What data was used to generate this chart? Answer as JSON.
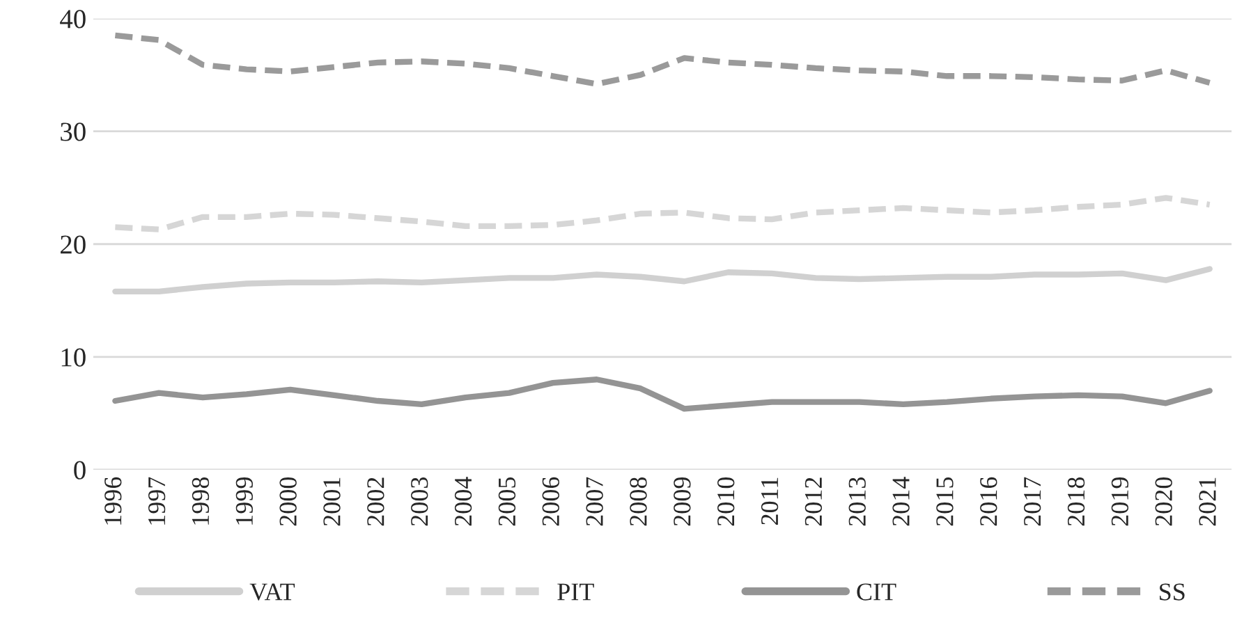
{
  "chart_data": {
    "type": "line",
    "categories": [
      "1996",
      "1997",
      "1998",
      "1999",
      "2000",
      "2001",
      "2002",
      "2003",
      "2004",
      "2005",
      "2006",
      "2007",
      "2008",
      "2009",
      "2010",
      "2011",
      "2012",
      "2013",
      "2014",
      "2015",
      "2016",
      "2017",
      "2018",
      "2019",
      "2020",
      "2021"
    ],
    "series": [
      {
        "name": "VAT",
        "color": "#d0d0d0",
        "line_style": "solid",
        "values": [
          15.8,
          15.8,
          16.2,
          16.5,
          16.6,
          16.6,
          16.7,
          16.6,
          16.8,
          17.0,
          17.0,
          17.3,
          17.1,
          16.7,
          17.5,
          17.4,
          17.0,
          16.9,
          17.0,
          17.1,
          17.1,
          17.3,
          17.3,
          17.4,
          16.8,
          17.8
        ]
      },
      {
        "name": "PIT",
        "color": "#d6d6d6",
        "line_style": "dashed",
        "values": [
          21.5,
          21.3,
          22.4,
          22.4,
          22.7,
          22.6,
          22.3,
          22.0,
          21.6,
          21.6,
          21.7,
          22.1,
          22.7,
          22.8,
          22.3,
          22.2,
          22.8,
          23.0,
          23.2,
          23.0,
          22.8,
          23.0,
          23.3,
          23.5,
          24.1,
          23.5
        ]
      },
      {
        "name": "CIT",
        "color": "#949494",
        "line_style": "solid",
        "values": [
          6.1,
          6.8,
          6.4,
          6.7,
          7.1,
          6.6,
          6.1,
          5.8,
          6.4,
          6.8,
          7.7,
          8.0,
          7.2,
          5.4,
          5.7,
          6.0,
          6.0,
          6.0,
          5.8,
          6.0,
          6.3,
          6.5,
          6.6,
          6.5,
          5.9,
          7.0
        ]
      },
      {
        "name": "SS",
        "color": "#9a9a9a",
        "line_style": "dashed",
        "values": [
          38.5,
          38.1,
          35.9,
          35.5,
          35.3,
          35.7,
          36.1,
          36.2,
          36.0,
          35.6,
          34.9,
          34.2,
          35.0,
          36.5,
          36.1,
          35.9,
          35.6,
          35.4,
          35.3,
          34.9,
          34.9,
          34.8,
          34.6,
          34.5,
          35.4,
          34.3
        ]
      }
    ],
    "ylim": [
      0,
      40
    ],
    "yticks": [
      0,
      10,
      20,
      30,
      40
    ],
    "grid": "y",
    "legend": "bottom"
  }
}
